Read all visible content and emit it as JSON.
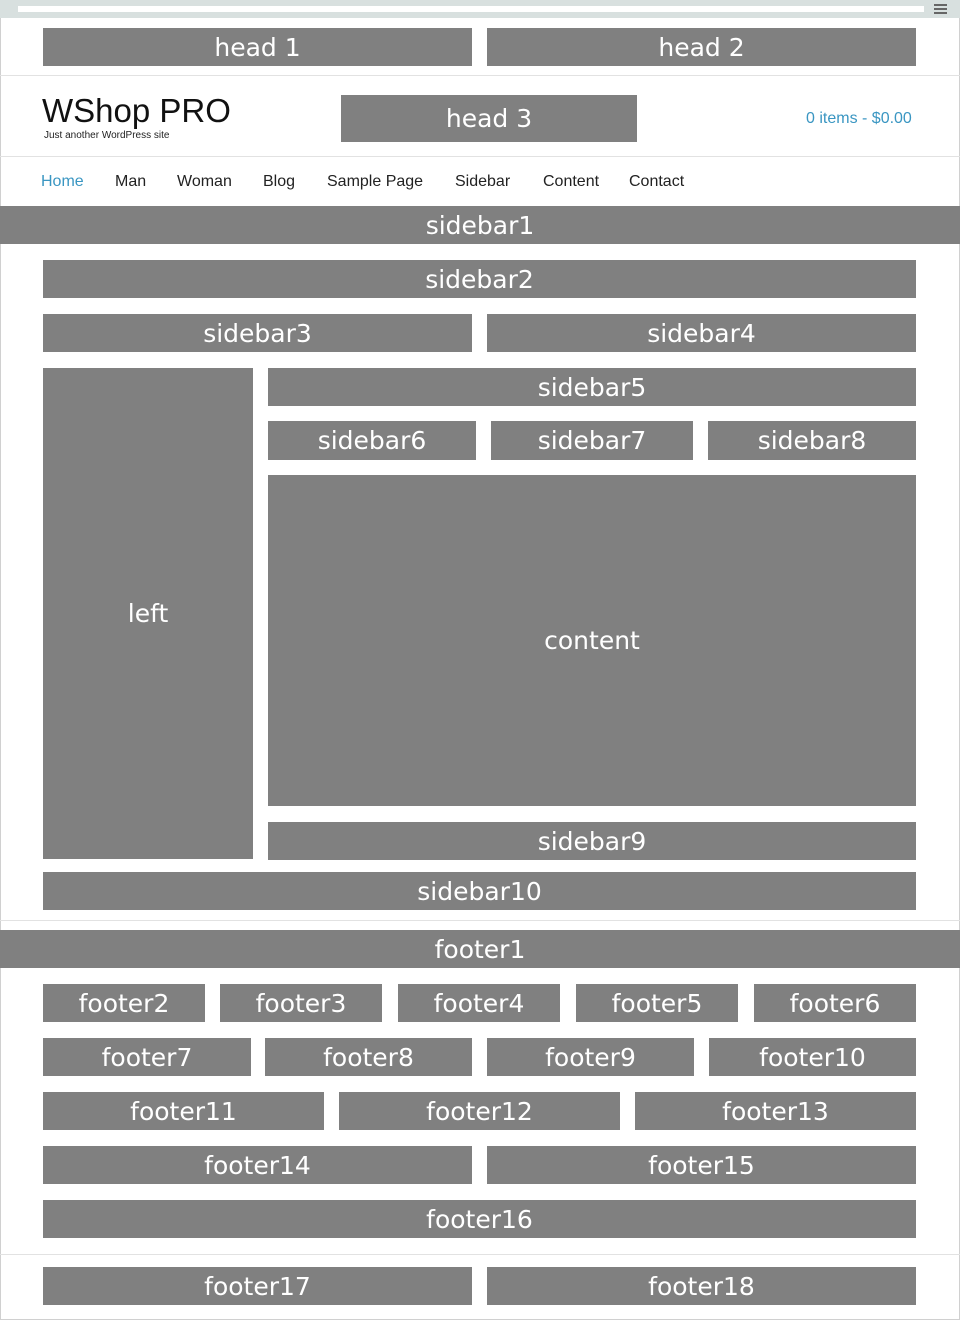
{
  "header": {
    "head1": "head 1",
    "head2": "head 2",
    "head3": "head 3",
    "logo_title": "WShop PRO",
    "logo_tagline": "Just another WordPress site",
    "cart": "0 items - $0.00"
  },
  "nav": {
    "items": [
      "Home",
      "Man",
      "Woman",
      "Blog",
      "Sample Page",
      "Sidebar",
      "Content",
      "Contact"
    ],
    "active": "Home"
  },
  "widgets": {
    "sidebar1": "sidebar1",
    "sidebar2": "sidebar2",
    "sidebar3": "sidebar3",
    "sidebar4": "sidebar4",
    "sidebar5": "sidebar5",
    "sidebar6": "sidebar6",
    "sidebar7": "sidebar7",
    "sidebar8": "sidebar8",
    "sidebar9": "sidebar9",
    "sidebar10": "sidebar10",
    "left": "left",
    "content": "content"
  },
  "footer": {
    "footer1": "footer1",
    "footer2": "footer2",
    "footer3": "footer3",
    "footer4": "footer4",
    "footer5": "footer5",
    "footer6": "footer6",
    "footer7": "footer7",
    "footer8": "footer8",
    "footer9": "footer9",
    "footer10": "footer10",
    "footer11": "footer11",
    "footer12": "footer12",
    "footer13": "footer13",
    "footer14": "footer14",
    "footer15": "footer15",
    "footer16": "footer16",
    "footer17": "footer17",
    "footer18": "footer18"
  },
  "colors": {
    "block": "#808080",
    "accent": "#3a96c2",
    "topbar": "#d8e0df"
  }
}
